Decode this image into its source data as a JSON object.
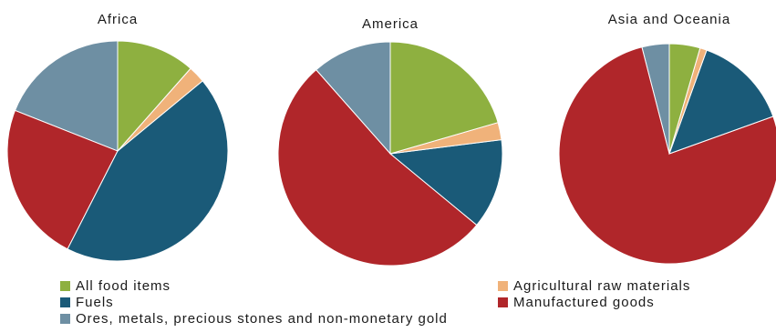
{
  "chart_data": [
    {
      "type": "pie",
      "title": "Africa",
      "categories": [
        "All food items",
        "Agricultural raw materials",
        "Fuels",
        "Manufactured goods",
        "Ores, metals, precious stones and non-monetary gold"
      ],
      "values": [
        11.5,
        2.5,
        43.5,
        23.5,
        19.0
      ]
    },
    {
      "type": "pie",
      "title": "America",
      "categories": [
        "All food items",
        "Agricultural raw materials",
        "Fuels",
        "Manufactured goods",
        "Ores, metals, precious stones and non-monetary gold"
      ],
      "values": [
        20.5,
        2.5,
        13.0,
        52.5,
        11.5
      ]
    },
    {
      "type": "pie",
      "title": "Asia and Oceania",
      "categories": [
        "All food items",
        "Agricultural raw materials",
        "Fuels",
        "Manufactured goods",
        "Ores, metals, precious stones and non-monetary gold"
      ],
      "values": [
        4.5,
        1.0,
        14.0,
        76.5,
        4.0
      ]
    }
  ],
  "legend": [
    {
      "label": "All food items",
      "color": "#8eb040"
    },
    {
      "label": "Agricultural raw materials",
      "color": "#f0b27a"
    },
    {
      "label": "Fuels",
      "color": "#1a5a78"
    },
    {
      "label": "Manufactured goods",
      "color": "#b0262a"
    },
    {
      "label": "Ores, metals, precious stones and non-monetary gold",
      "color": "#6e8fa3"
    }
  ]
}
